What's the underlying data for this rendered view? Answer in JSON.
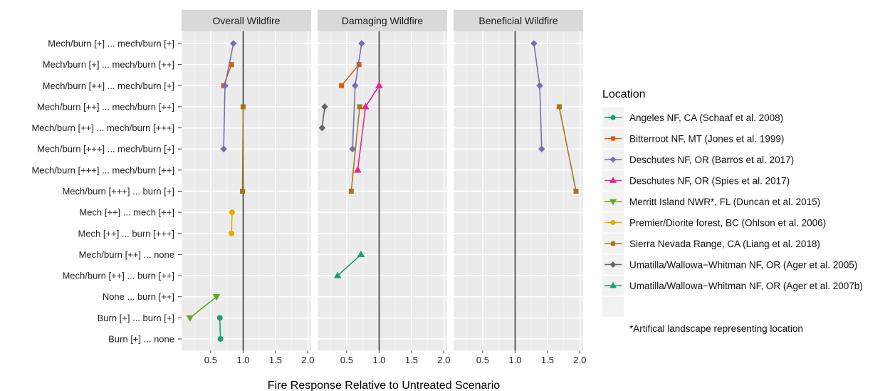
{
  "chart_data": {
    "type": "scatter",
    "xlabel": "Fire Response Relative to Untreated Scenario",
    "ylabel": "",
    "xlim": [
      0.05,
      2.05
    ],
    "x_ticks": [
      0.5,
      1.0,
      1.5,
      2.0
    ],
    "x_tick_labels": [
      "0.5",
      "1.0",
      "1.5",
      "2.0"
    ],
    "reference_line_x": 1.0,
    "grid": true,
    "legend_position": "right",
    "panels": [
      "Overall Wildfire",
      "Damaging Wildfire",
      "Beneficial Wildfire"
    ],
    "categories": [
      "Mech/burn [+] ... mech/burn [+]",
      "Mech/burn [+] ... mech/burn [++]",
      "Mech/burn [++] ... mech/burn [+]",
      "Mech/burn [++] ... mech/burn [++]",
      "Mech/burn [++] ... mech/burn [+++]",
      "Mech/burn [+++] ... mech/burn [+]",
      "Mech/burn [+++] ... mech/burn [++]",
      "Mech/burn [+++] ... burn [+]",
      "Mech [++] ... mech [++]",
      "Mech [++] ... burn [+++]",
      "Mech/burn [++] ... none",
      "Mech/burn [++] ... burn [++]",
      "None ... burn [++]",
      "Burn [+] ... burn [+]",
      "Burn [+] ... none"
    ],
    "legend_title": "Location",
    "legend_note": "*Artifical landscape representing location",
    "series": [
      {
        "name": "Angeles NF, CA (Schaaf et al. 2008)",
        "color": "#1B9E77",
        "shape": "circle",
        "points": [
          {
            "panel": 0,
            "category": 13,
            "x": 0.64
          },
          {
            "panel": 0,
            "category": 14,
            "x": 0.65
          }
        ]
      },
      {
        "name": "Bitterroot NF, MT (Jones et al. 1999)",
        "color": "#D95F02",
        "shape": "square",
        "points": [
          {
            "panel": 0,
            "category": 1,
            "x": 0.82
          },
          {
            "panel": 0,
            "category": 2,
            "x": 0.7
          },
          {
            "panel": 1,
            "category": 1,
            "x": 0.69
          },
          {
            "panel": 1,
            "category": 2,
            "x": 0.42
          }
        ]
      },
      {
        "name": "Deschutes NF, OR (Barros et al. 2017)",
        "color": "#7570B3",
        "shape": "diamond",
        "points": [
          {
            "panel": 0,
            "category": 0,
            "x": 0.85
          },
          {
            "panel": 0,
            "category": 2,
            "x": 0.72
          },
          {
            "panel": 0,
            "category": 5,
            "x": 0.7
          },
          {
            "panel": 1,
            "category": 0,
            "x": 0.73
          },
          {
            "panel": 1,
            "category": 2,
            "x": 0.63
          },
          {
            "panel": 1,
            "category": 5,
            "x": 0.59
          },
          {
            "panel": 2,
            "category": 0,
            "x": 1.29
          },
          {
            "panel": 2,
            "category": 2,
            "x": 1.38
          },
          {
            "panel": 2,
            "category": 5,
            "x": 1.41
          }
        ]
      },
      {
        "name": "Deschutes NF, OR (Spies et al. 2017)",
        "color": "#E7298A",
        "shape": "triangle-up",
        "points": [
          {
            "panel": 1,
            "category": 2,
            "x": 1.0
          },
          {
            "panel": 1,
            "category": 3,
            "x": 0.79
          },
          {
            "panel": 1,
            "category": 6,
            "x": 0.67
          }
        ]
      },
      {
        "name": "Merritt Island NWR*, FL (Duncan et al. 2015)",
        "color": "#66A61E",
        "shape": "triangle-down",
        "points": [
          {
            "panel": 0,
            "category": 12,
            "x": 0.59
          },
          {
            "panel": 0,
            "category": 13,
            "x": 0.18
          }
        ]
      },
      {
        "name": "Premier/Diorite forest, BC (Ohlson et al. 2006)",
        "color": "#E6AB02",
        "shape": "circle",
        "points": [
          {
            "panel": 0,
            "category": 8,
            "x": 0.83
          },
          {
            "panel": 0,
            "category": 9,
            "x": 0.82
          }
        ]
      },
      {
        "name": "Sierra Nevada Range, CA (Liang et al. 2018)",
        "color": "#A6761D",
        "shape": "square",
        "points": [
          {
            "panel": 0,
            "category": 3,
            "x": 1.0
          },
          {
            "panel": 0,
            "category": 7,
            "x": 0.99
          },
          {
            "panel": 1,
            "category": 3,
            "x": 0.7
          },
          {
            "panel": 1,
            "category": 7,
            "x": 0.57
          },
          {
            "panel": 2,
            "category": 3,
            "x": 1.68
          },
          {
            "panel": 2,
            "category": 7,
            "x": 1.94
          }
        ]
      },
      {
        "name": "Umatilla/Wallowa−Whitman NF, OR (Ager et al. 2005)",
        "color": "#666666",
        "shape": "diamond",
        "points": [
          {
            "panel": 1,
            "category": 3,
            "x": 0.16
          },
          {
            "panel": 1,
            "category": 4,
            "x": 0.12
          }
        ]
      },
      {
        "name": "Umatilla/Wallowa−Whitman NF, OR (Ager et al. 2007b)",
        "color": "#1B9E77",
        "shape": "triangle-up",
        "points": [
          {
            "panel": 1,
            "category": 10,
            "x": 0.72
          },
          {
            "panel": 1,
            "category": 11,
            "x": 0.36
          }
        ]
      }
    ]
  }
}
